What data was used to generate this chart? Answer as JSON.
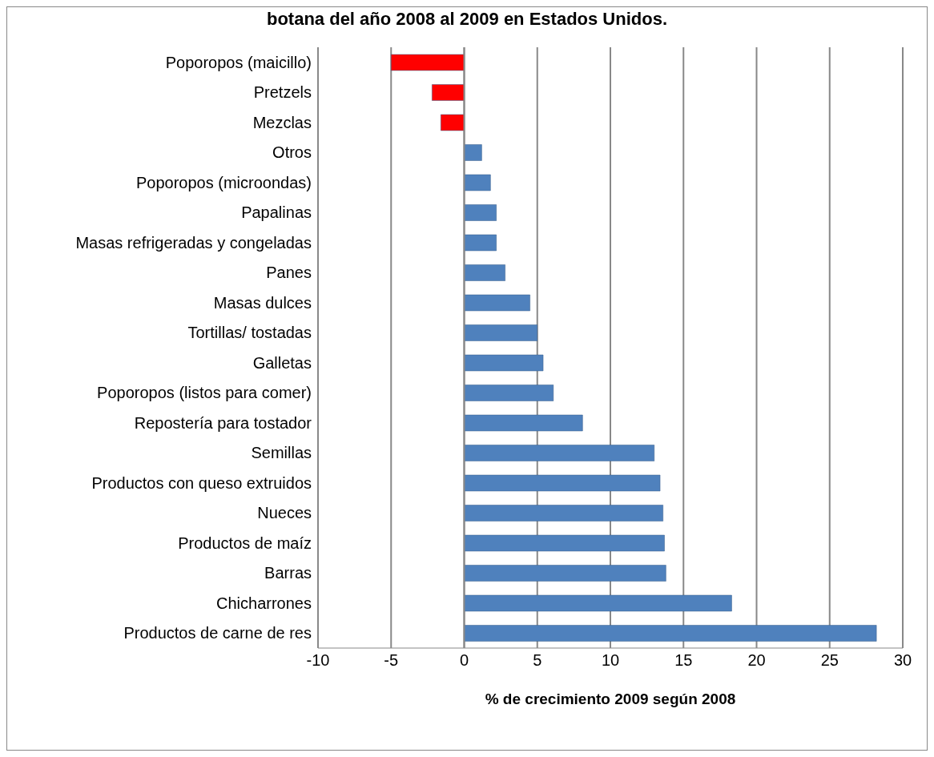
{
  "chart_data": {
    "type": "bar",
    "orientation": "horizontal",
    "title": "botana del año 2008 al 2009 en Estados Unidos.",
    "xlabel": "% de crecimiento 2009 según 2008",
    "categories": [
      "Poporopos (maicillo)",
      "Pretzels",
      "Mezclas",
      "Otros",
      "Poporopos (microondas)",
      "Papalinas",
      "Masas refrigeradas y congeladas",
      "Panes",
      "Masas dulces",
      "Tortillas/ tostadas",
      "Galletas",
      "Poporopos (listos para comer)",
      "Repostería para tostador",
      "Semillas ",
      "Productos con queso extruidos ",
      "Nueces",
      "Productos de maíz",
      "Barras",
      "Chicharrones",
      "Productos de carne de res"
    ],
    "values": [
      -5.0,
      -2.2,
      -1.6,
      1.2,
      1.8,
      2.2,
      2.2,
      2.8,
      4.5,
      5.0,
      5.4,
      6.1,
      8.1,
      13.0,
      13.4,
      13.6,
      13.7,
      13.8,
      18.3,
      28.2
    ],
    "colors": [
      "#ff0000",
      "#ff0000",
      "#ff0000",
      "#4f81bd",
      "#4f81bd",
      "#4f81bd",
      "#4f81bd",
      "#4f81bd",
      "#4f81bd",
      "#4f81bd",
      "#4f81bd",
      "#4f81bd",
      "#4f81bd",
      "#4f81bd",
      "#4f81bd",
      "#4f81bd",
      "#4f81bd",
      "#4f81bd",
      "#4f81bd",
      "#4f81bd"
    ],
    "xlim": [
      -10,
      30
    ],
    "xticks": [
      -10,
      -5,
      0,
      5,
      10,
      15,
      20,
      25,
      30
    ],
    "grid": "x"
  }
}
